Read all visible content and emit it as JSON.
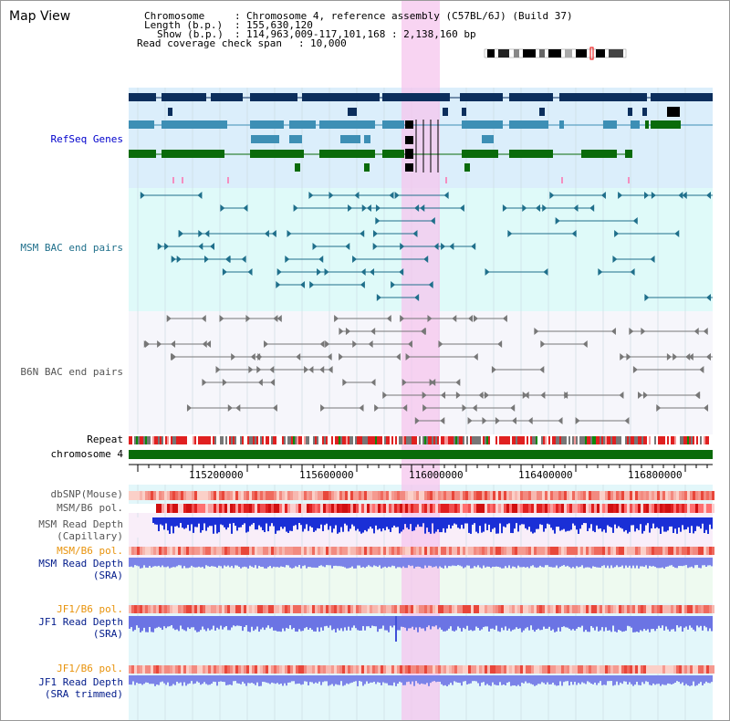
{
  "header": {
    "title": "Map View",
    "info": {
      "chromosome_key": "Chromosome",
      "chromosome_val": "Chromosome 4, reference assembly (C57BL/6J) (Build 37)",
      "length_key": "Length (b.p.)",
      "length_val": "155,630,120",
      "show_key": "Show (b.p.)",
      "show_val": "114,963,009-117,101,168 : 2,138,160 bp",
      "coverage_key": "Read coverage check span",
      "coverage_val": "10,000"
    }
  },
  "tracks": {
    "refseq": "RefSeq Genes",
    "msm_bac": "MSM BAC end pairs",
    "b6n_bac": "B6N BAC end pairs",
    "repeat": "Repeat",
    "chromosome": "chromosome 4",
    "dbsnp": "dbSNP(Mouse)",
    "msm_b6_pol_1": "MSM/B6 pol.",
    "msm_depth_cap_1": "MSM Read Depth",
    "msm_depth_cap_2": "(Capillary)",
    "msm_b6_pol_2": "MSM/B6 pol.",
    "msm_depth_sra_1": "MSM Read Depth",
    "msm_depth_sra_2": "(SRA)",
    "jf1_b6_pol_1": "JF1/B6 pol.",
    "jf1_depth_sra_1": "JF1 Read Depth",
    "jf1_depth_sra_2": "(SRA)",
    "jf1_b6_pol_2": "JF1/B6 pol.",
    "jf1_depth_trim_1": "JF1 Read Depth",
    "jf1_depth_trim_2": "(SRA trimmed)"
  },
  "axis": {
    "ticks": [
      "115200000",
      "115600000",
      "116000000",
      "116400000",
      "116800000"
    ]
  },
  "colors": {
    "refseq_bg": "#dbeefb",
    "msm_bg": "#dffaf9",
    "b6n_bg": "#f6f6fb",
    "highlight": "#f7d6f1",
    "chromosome": "#0a6b0a",
    "navy_gene": "#0b2e5c",
    "light_gene": "#3d8fb5",
    "green_gene": "#0a6b0a"
  }
}
